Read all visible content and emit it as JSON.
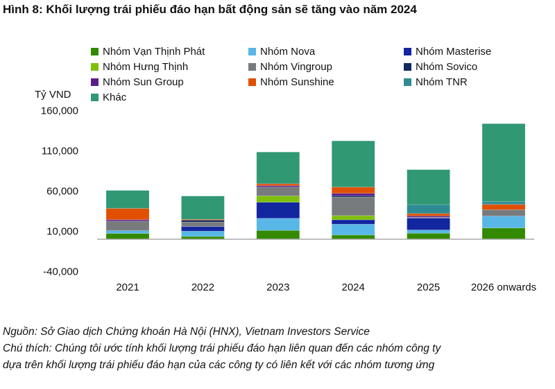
{
  "title": "Hình 8: Khối lượng trái phiếu đáo hạn bất động sản sẽ tăng vào năm 2024",
  "notes": [
    "Nguồn: Sở Giao dịch Chứng khoán Hà Nội (HNX), Vietnam Investors Service",
    "Chú thích: Chúng tôi ước tính khối lượng trái phiếu đáo hạn liên quan đến các nhóm công ty",
    "dựa trên khối lượng trái phiếu đáo hạn của các công ty có liên kết với các nhóm tương ứng"
  ],
  "chart_data": {
    "type": "bar",
    "stacked": true,
    "ylabel": "Tỷ VND",
    "ylim": [
      -40000,
      160000
    ],
    "yticks": [
      -40000,
      10000,
      60000,
      110000,
      160000
    ],
    "ytick_labels": [
      "-40,000",
      "10,000",
      "60,000",
      "110,000",
      "160,000"
    ],
    "grid": false,
    "legend": "top",
    "categories": [
      "2021",
      "2022",
      "2023",
      "2024",
      "2025",
      "2026 onwards"
    ],
    "series": [
      {
        "name": "Nhóm Vạn Thịnh Phát",
        "color": "#338a00",
        "values": [
          7200,
          3400,
          11000,
          5200,
          7500,
          14000
        ]
      },
      {
        "name": "Nhóm Nova",
        "color": "#58b7e6",
        "values": [
          3400,
          6600,
          15000,
          13500,
          4000,
          14700
        ]
      },
      {
        "name": "Nhóm Masterise",
        "color": "#1226a0",
        "values": [
          0,
          5700,
          20000,
          5500,
          14700,
          0
        ]
      },
      {
        "name": "Nhóm Hưng Thịnh",
        "color": "#7fbf0d",
        "values": [
          0,
          0,
          7800,
          5200,
          0,
          0
        ]
      },
      {
        "name": "Nhóm Vingroup",
        "color": "#777b7e",
        "values": [
          12000,
          5700,
          11200,
          23000,
          1100,
          8000
        ]
      },
      {
        "name": "Nhóm Sovico",
        "color": "#0f2a5c",
        "values": [
          0,
          2300,
          0,
          1700,
          0,
          0
        ]
      },
      {
        "name": "Nhóm Sun Group",
        "color": "#5a1e8c",
        "values": [
          1700,
          0,
          1700,
          2900,
          1700,
          0
        ]
      },
      {
        "name": "Nhóm Sunshine",
        "color": "#e05000",
        "values": [
          14000,
          1000,
          2300,
          7800,
          2900,
          6600
        ]
      },
      {
        "name": "Nhóm TNR",
        "color": "#2e8b93",
        "values": [
          0,
          0,
          0,
          0,
          11200,
          3400
        ]
      },
      {
        "name": "Khác",
        "color": "#319874",
        "values": [
          22400,
          29000,
          39400,
          57500,
          43400,
          97000
        ]
      }
    ]
  }
}
